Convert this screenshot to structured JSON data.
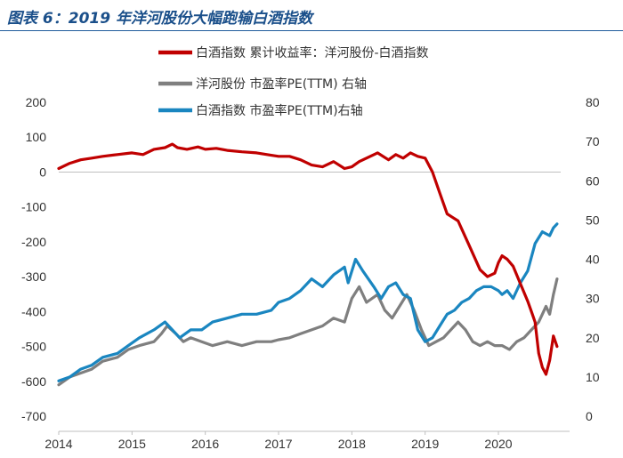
{
  "title": "图表 6：2019 年洋河股份大幅跑输白酒指数",
  "chart_data": {
    "type": "line",
    "title": "图表 6：2019 年洋河股份大幅跑输白酒指数",
    "x_tick_labels": [
      "2014",
      "2015",
      "2016",
      "2017",
      "2018",
      "2019",
      "2020"
    ],
    "x_range": [
      2014.0,
      2020.85
    ],
    "left_axis": {
      "ylim": [
        -700,
        200
      ],
      "ticks": [
        200,
        100,
        0,
        -100,
        -200,
        -300,
        -400,
        -500,
        -600,
        -700
      ]
    },
    "right_axis": {
      "ylim": [
        0,
        80
      ],
      "ticks": [
        80,
        70,
        60,
        50,
        40,
        30,
        20,
        10,
        0
      ]
    },
    "series": [
      {
        "name": "白酒指数 累计收益率：洋河股份-白酒指数",
        "color": "#c00000",
        "axis": "left",
        "x": [
          2014.0,
          2014.15,
          2014.3,
          2014.45,
          2014.6,
          2014.8,
          2015.0,
          2015.15,
          2015.3,
          2015.45,
          2015.55,
          2015.62,
          2015.75,
          2015.9,
          2016.0,
          2016.15,
          2016.3,
          2016.5,
          2016.7,
          2016.9,
          2017.0,
          2017.15,
          2017.3,
          2017.45,
          2017.6,
          2017.75,
          2017.9,
          2018.0,
          2018.1,
          2018.2,
          2018.35,
          2018.5,
          2018.6,
          2018.7,
          2018.8,
          2018.9,
          2019.0,
          2019.1,
          2019.2,
          2019.3,
          2019.45,
          2019.6,
          2019.75,
          2019.85,
          2019.95,
          2020.0,
          2020.05,
          2020.12,
          2020.2,
          2020.3,
          2020.4,
          2020.45,
          2020.5,
          2020.55,
          2020.6,
          2020.65,
          2020.7,
          2020.75,
          2020.8
        ],
        "values": [
          10,
          25,
          35,
          40,
          45,
          50,
          55,
          50,
          65,
          70,
          80,
          70,
          65,
          72,
          65,
          68,
          62,
          58,
          55,
          48,
          45,
          45,
          35,
          20,
          15,
          30,
          10,
          15,
          30,
          40,
          55,
          35,
          50,
          40,
          55,
          45,
          40,
          0,
          -60,
          -120,
          -140,
          -210,
          -280,
          -300,
          -290,
          -260,
          -240,
          -250,
          -270,
          -320,
          -370,
          -400,
          -430,
          -520,
          -560,
          -580,
          -540,
          -470,
          -500
        ]
      },
      {
        "name": "洋河股份 市盈率PE(TTM) 右轴",
        "color": "#7f7f7f",
        "axis": "right",
        "x": [
          2014.0,
          2014.15,
          2014.3,
          2014.45,
          2014.6,
          2014.8,
          2014.95,
          2015.1,
          2015.3,
          2015.4,
          2015.48,
          2015.6,
          2015.7,
          2015.8,
          2015.95,
          2016.1,
          2016.3,
          2016.5,
          2016.7,
          2016.9,
          2017.0,
          2017.15,
          2017.3,
          2017.45,
          2017.6,
          2017.75,
          2017.9,
          2018.0,
          2018.1,
          2018.2,
          2018.35,
          2018.45,
          2018.55,
          2018.65,
          2018.75,
          2018.85,
          2018.95,
          2019.05,
          2019.15,
          2019.25,
          2019.35,
          2019.45,
          2019.55,
          2019.65,
          2019.75,
          2019.85,
          2019.95,
          2020.05,
          2020.15,
          2020.25,
          2020.35,
          2020.45,
          2020.55,
          2020.6,
          2020.65,
          2020.7,
          2020.75,
          2020.8
        ],
        "values": [
          8,
          10,
          11,
          12,
          14,
          15,
          17,
          18,
          19,
          21,
          23,
          21,
          19,
          20,
          19,
          18,
          19,
          18,
          19,
          19,
          19.5,
          20,
          21,
          22,
          23,
          25,
          24,
          30,
          33,
          29,
          31,
          27,
          25,
          28,
          31,
          27,
          22,
          18,
          19,
          20,
          22,
          24,
          22,
          19,
          18,
          19,
          18,
          18,
          17,
          19,
          20,
          22,
          24,
          26,
          28,
          26,
          31,
          35
        ]
      },
      {
        "name": "白酒指数 市盈率PE(TTM)右轴",
        "color": "#1a86c0",
        "axis": "right",
        "x": [
          2014.0,
          2014.15,
          2014.3,
          2014.45,
          2014.6,
          2014.8,
          2014.95,
          2015.1,
          2015.3,
          2015.45,
          2015.55,
          2015.65,
          2015.8,
          2015.95,
          2016.1,
          2016.3,
          2016.5,
          2016.7,
          2016.9,
          2017.0,
          2017.15,
          2017.3,
          2017.45,
          2017.6,
          2017.75,
          2017.9,
          2017.95,
          2018.05,
          2018.15,
          2018.3,
          2018.4,
          2018.5,
          2018.6,
          2018.7,
          2018.8,
          2018.9,
          2019.0,
          2019.1,
          2019.2,
          2019.3,
          2019.4,
          2019.5,
          2019.6,
          2019.7,
          2019.8,
          2019.9,
          2020.0,
          2020.05,
          2020.12,
          2020.2,
          2020.3,
          2020.4,
          2020.5,
          2020.6,
          2020.7,
          2020.75,
          2020.8
        ],
        "values": [
          9,
          10,
          12,
          13,
          15,
          16,
          18,
          20,
          22,
          24,
          22,
          20,
          22,
          22,
          24,
          25,
          26,
          26,
          27,
          29,
          30,
          32,
          35,
          33,
          36,
          38,
          34,
          40,
          37,
          33,
          30,
          33,
          34,
          31,
          30,
          22,
          19,
          20,
          23,
          26,
          27,
          29,
          30,
          32,
          33,
          33,
          32,
          31,
          32,
          30,
          34,
          37,
          44,
          47,
          46,
          48,
          49
        ]
      }
    ]
  }
}
